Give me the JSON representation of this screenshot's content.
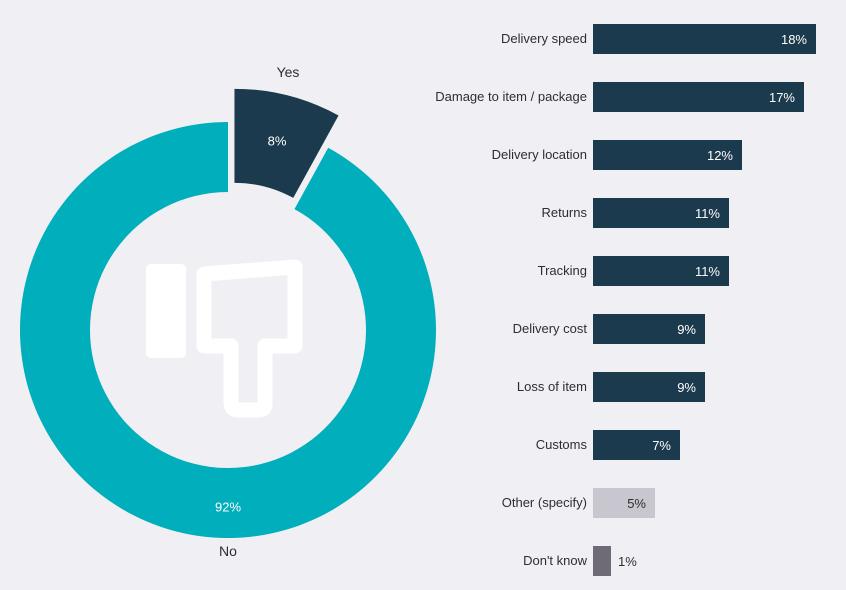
{
  "colors": {
    "background": "#f0eff3",
    "navy": "#1c3a4d",
    "teal": "#00aebc",
    "light_gray": "#c8c6ce",
    "mid_gray": "#6e6b77",
    "text": "#2e2d33",
    "white": "#ffffff"
  },
  "chart_data": [
    {
      "type": "pie",
      "subtype": "donut",
      "title": "",
      "legend_position": "none",
      "center_icon": "thumbs-down-icon",
      "slices": [
        {
          "label": "Yes",
          "value": 8,
          "value_label": "8%",
          "color": "#1c3a4d",
          "exploded": true
        },
        {
          "label": "No",
          "value": 92,
          "value_label": "92%",
          "color": "#00aebc",
          "exploded": false
        }
      ]
    },
    {
      "type": "bar",
      "orientation": "horizontal",
      "title": "",
      "grid": false,
      "xlim": [
        0,
        18.6
      ],
      "categories": [
        "Delivery speed",
        "Damage to item / package",
        "Delivery location",
        "Returns",
        "Tracking",
        "Delivery cost",
        "Loss of item",
        "Customs",
        "Other (specify)",
        "Don't know"
      ],
      "values": [
        18,
        17,
        12,
        11,
        11,
        9,
        9,
        7,
        5,
        1
      ],
      "value_labels": [
        "18%",
        "17%",
        "12%",
        "11%",
        "11%",
        "9%",
        "9%",
        "7%",
        "5%",
        "1%"
      ],
      "bar_colors": [
        "#1c3a4d",
        "#1c3a4d",
        "#1c3a4d",
        "#1c3a4d",
        "#1c3a4d",
        "#1c3a4d",
        "#1c3a4d",
        "#1c3a4d",
        "#c8c6ce",
        "#6e6b77"
      ],
      "value_label_styles": [
        "inside-light",
        "inside-light",
        "inside-light",
        "inside-light",
        "inside-light",
        "inside-light",
        "inside-light",
        "inside-light",
        "inside-dark",
        "outside"
      ]
    }
  ]
}
